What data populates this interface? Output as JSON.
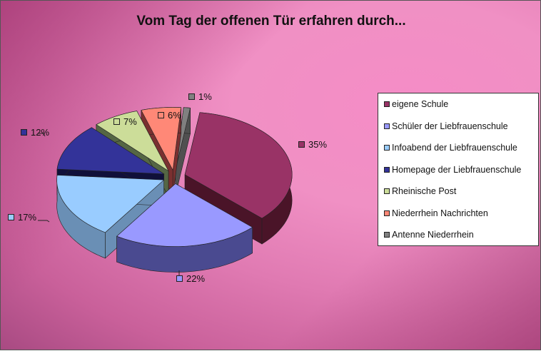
{
  "chart_data": {
    "type": "pie",
    "title": "Vom Tag der offenen Tür erfahren durch...",
    "categories": [
      "eigene Schule",
      "Schüler der Liebfrauenschule",
      "Infoabend der Liebfrauenschule",
      "Homepage der Liebfrauenschule",
      "Rheinische Post",
      "Niederrhein Nachrichten",
      "Antenne Niederrhein"
    ],
    "values": [
      35,
      22,
      17,
      12,
      7,
      6,
      1
    ],
    "labels": [
      "35%",
      "22%",
      "17%",
      "12%",
      "7%",
      "6%",
      "1%"
    ],
    "colors": [
      "#993366",
      "#9999ff",
      "#99ccff",
      "#333399",
      "#ccdd99",
      "#ff8877",
      "#808080"
    ],
    "side_colors": [
      "#4a1428",
      "#4a4a90",
      "#6a8fb5",
      "#10103a",
      "#556644",
      "#7a3030",
      "#505050"
    ],
    "legend_position": "right",
    "style": "3d-exploded"
  }
}
